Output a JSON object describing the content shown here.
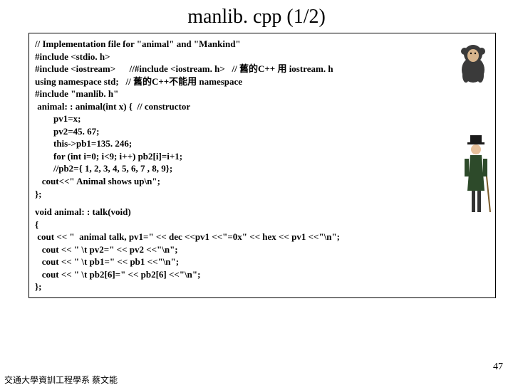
{
  "title": "manlib. cpp (1/2)",
  "code_block1": [
    "// Implementation file for \"animal\" and \"Mankind\"",
    "#include <stdio. h>",
    "#include <iostream>      //#include <iostream. h>   // 舊的C++ 用 iostream. h",
    "using namespace std;   // 舊的C++不能用 namespace",
    "#include \"manlib. h\"",
    " animal: : animal(int x) {  // constructor",
    "        pv1=x;",
    "        pv2=45. 67;",
    "        this->pb1=135. 246;",
    "        for (int i=0; i<9; i++) pb2[i]=i+1;",
    "        //pb2={ 1, 2, 3, 4, 5, 6, 7 , 8, 9};",
    "   cout<<\" Animal shows up\\n\";",
    "};"
  ],
  "code_block2": [
    "void animal: : talk(void)",
    "{",
    " cout << \"  animal talk, pv1=\" << dec <<pv1 <<\"=0x\" << hex << pv1 <<\"\\n\";",
    "   cout << \" \\t pv2=\" << pv2 <<\"\\n\";",
    "   cout << \" \\t pb1=\" << pb1 <<\"\\n\";",
    "   cout << \" \\t pb2[6]=\" << pb2[6] <<\"\\n\";",
    "};"
  ],
  "footer": "交通大學資訓工程學系 蔡文能",
  "page_number": "47"
}
